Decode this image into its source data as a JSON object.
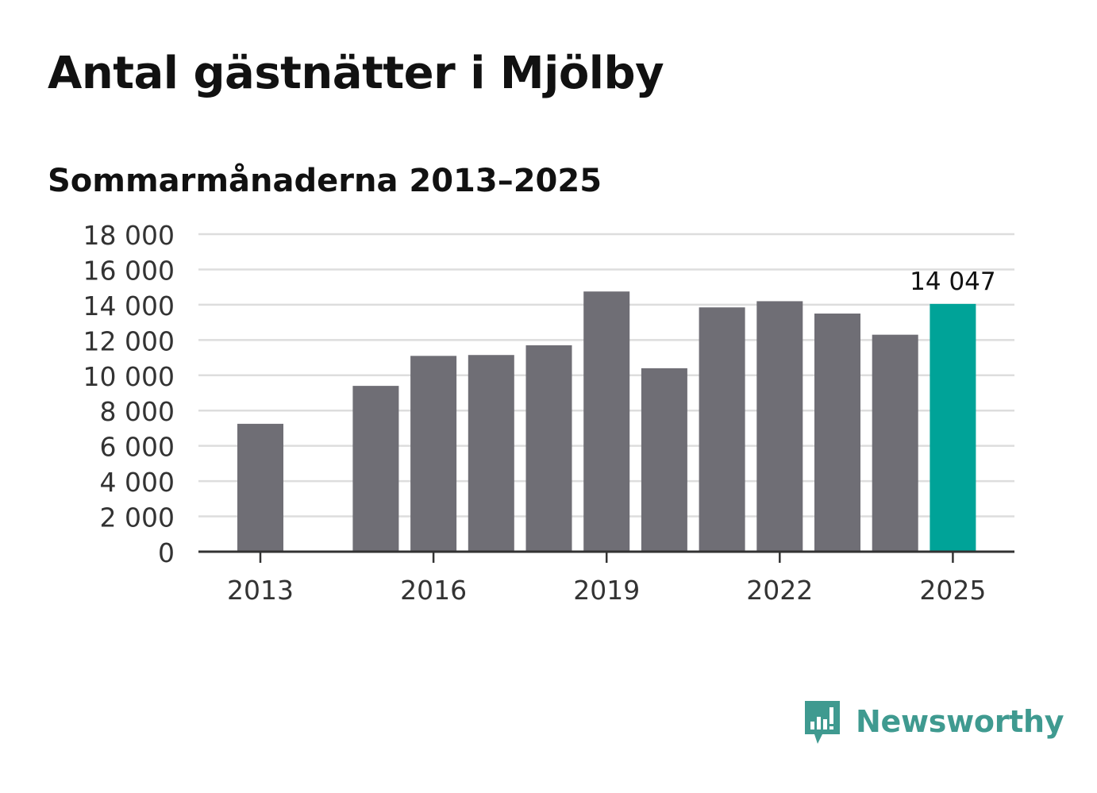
{
  "title": "Antal gästnätter i Mjölby",
  "subtitle": "Sommarmånaderna 2013–2025",
  "brand": {
    "name": "Newsworthy",
    "icon": "newsworthy-chart-bubble-icon",
    "color": "#3f9a90"
  },
  "colors": {
    "bar": "#6f6e75",
    "highlight": "#00a398",
    "grid": "#dddddd",
    "axis": "#333333"
  },
  "chart_data": {
    "type": "bar",
    "categories": [
      "2013",
      "2014",
      "2015",
      "2016",
      "2017",
      "2018",
      "2019",
      "2020",
      "2021",
      "2022",
      "2023",
      "2024",
      "2025"
    ],
    "values": [
      7250,
      null,
      9400,
      11100,
      11150,
      11700,
      14750,
      10400,
      13850,
      14200,
      13500,
      12300,
      14047
    ],
    "highlight_index": 12,
    "data_labels": {
      "12": "14 047"
    },
    "xtick_labels": [
      "2013",
      "2016",
      "2019",
      "2022",
      "2025"
    ],
    "ytick_values": [
      0,
      2000,
      4000,
      6000,
      8000,
      10000,
      12000,
      14000,
      16000,
      18000
    ],
    "ytick_labels": [
      "0",
      "2 000",
      "4 000",
      "6 000",
      "8 000",
      "10 000",
      "12 000",
      "14 000",
      "16 000",
      "18 000"
    ],
    "ylim": [
      0,
      18000
    ],
    "grid": true,
    "legend": "none",
    "xlabel": "",
    "ylabel": ""
  }
}
